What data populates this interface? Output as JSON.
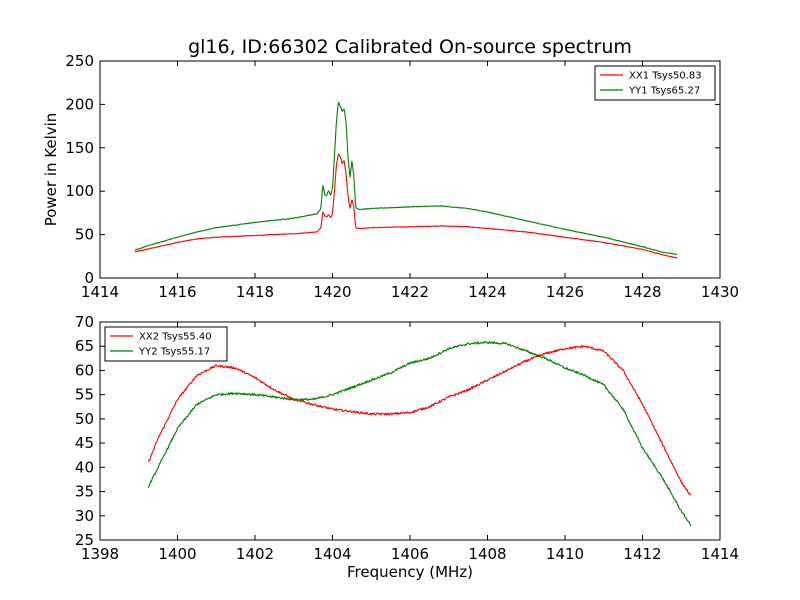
{
  "figure": {
    "title": "gl16, ID:66302 Calibrated On-source spectrum",
    "xlabel": "Frequency (MHz)"
  },
  "chart_data": [
    {
      "type": "line",
      "title": "gl16, ID:66302 Calibrated On-source spectrum",
      "xlabel": "",
      "ylabel": "Power in Kelvin",
      "xlim": [
        1414,
        1430
      ],
      "ylim": [
        0,
        250
      ],
      "xticks": [
        1414,
        1416,
        1418,
        1420,
        1422,
        1424,
        1426,
        1428,
        1430
      ],
      "yticks": [
        0,
        50,
        100,
        150,
        200,
        250
      ],
      "grid": false,
      "legend": "top-right",
      "series": [
        {
          "name": "XX1 Tsys50.83",
          "color": "#ff0000",
          "x": [
            1414.9,
            1415.3,
            1416.0,
            1416.5,
            1417.0,
            1418.0,
            1419.0,
            1419.6,
            1419.7,
            1419.75,
            1419.8,
            1419.85,
            1419.9,
            1419.95,
            1420.0,
            1420.05,
            1420.1,
            1420.15,
            1420.2,
            1420.25,
            1420.3,
            1420.35,
            1420.4,
            1420.45,
            1420.5,
            1420.55,
            1420.6,
            1420.7,
            1421.0,
            1422.0,
            1422.8,
            1423.5,
            1424.0,
            1425.0,
            1426.0,
            1427.0,
            1428.0,
            1428.5,
            1428.9
          ],
          "y": [
            30,
            34,
            41,
            45,
            47,
            49,
            51,
            53,
            58,
            76,
            72,
            70,
            73,
            69,
            74,
            100,
            130,
            143,
            140,
            132,
            135,
            120,
            95,
            80,
            90,
            82,
            58,
            57,
            58,
            59,
            60,
            59,
            57,
            53,
            47,
            41,
            33,
            27,
            23
          ]
        },
        {
          "name": "YY1 Tsys65.27",
          "color": "#008000",
          "x": [
            1414.9,
            1415.3,
            1416.0,
            1416.5,
            1417.0,
            1418.0,
            1419.0,
            1419.6,
            1419.7,
            1419.75,
            1419.8,
            1419.85,
            1419.9,
            1419.95,
            1420.0,
            1420.05,
            1420.1,
            1420.15,
            1420.2,
            1420.25,
            1420.3,
            1420.35,
            1420.4,
            1420.45,
            1420.5,
            1420.55,
            1420.6,
            1420.7,
            1421.0,
            1422.0,
            1422.8,
            1423.5,
            1424.0,
            1425.0,
            1426.0,
            1427.0,
            1428.0,
            1428.5,
            1428.9
          ],
          "y": [
            32,
            38,
            47,
            53,
            58,
            64,
            69,
            74,
            80,
            107,
            96,
            95,
            101,
            95,
            103,
            140,
            180,
            203,
            198,
            192,
            195,
            180,
            140,
            115,
            135,
            118,
            81,
            79,
            80,
            82,
            83,
            80,
            76,
            66,
            56,
            47,
            36,
            30,
            27
          ]
        }
      ]
    },
    {
      "type": "line",
      "title": "",
      "xlabel": "Frequency (MHz)",
      "ylabel": "",
      "xlim": [
        1398,
        1414
      ],
      "ylim": [
        25,
        70
      ],
      "xticks": [
        1398,
        1400,
        1402,
        1404,
        1406,
        1408,
        1410,
        1412,
        1414
      ],
      "yticks": [
        25,
        30,
        35,
        40,
        45,
        50,
        55,
        60,
        65,
        70
      ],
      "grid": false,
      "legend": "top-left",
      "series": [
        {
          "name": "XX2 Tsys55.40",
          "color": "#ff0000",
          "x": [
            1399.25,
            1399.5,
            1400.0,
            1400.5,
            1401.0,
            1401.5,
            1402.0,
            1402.5,
            1403.0,
            1403.5,
            1404.0,
            1404.5,
            1405.0,
            1405.5,
            1406.0,
            1406.5,
            1407.0,
            1407.5,
            1408.0,
            1408.5,
            1409.0,
            1409.5,
            1410.0,
            1410.5,
            1411.0,
            1411.5,
            1412.0,
            1412.5,
            1413.0,
            1413.25
          ],
          "y": [
            41,
            46,
            54,
            59,
            61,
            60.5,
            58.5,
            56,
            54,
            53,
            52,
            51.5,
            51,
            51,
            51.3,
            52.5,
            54.5,
            56,
            58,
            60,
            62,
            63.5,
            64.5,
            65,
            64,
            60,
            53,
            45,
            37,
            34
          ]
        },
        {
          "name": "YY2 Tsys55.17",
          "color": "#008000",
          "x": [
            1399.25,
            1399.5,
            1400.0,
            1400.5,
            1401.0,
            1401.5,
            1402.0,
            1402.5,
            1403.0,
            1403.5,
            1404.0,
            1404.5,
            1405.0,
            1405.5,
            1406.0,
            1406.5,
            1407.0,
            1407.5,
            1408.0,
            1408.5,
            1409.0,
            1409.5,
            1410.0,
            1410.5,
            1411.0,
            1411.5,
            1412.0,
            1412.5,
            1413.0,
            1413.25
          ],
          "y": [
            36,
            40,
            48,
            53,
            55,
            55.3,
            55,
            54.5,
            54,
            54,
            55,
            56.5,
            58,
            59.5,
            61.5,
            62.5,
            64.5,
            65.5,
            65.8,
            65.5,
            64,
            62.5,
            60.5,
            59,
            57,
            52,
            44,
            38,
            31,
            28
          ]
        }
      ]
    }
  ]
}
